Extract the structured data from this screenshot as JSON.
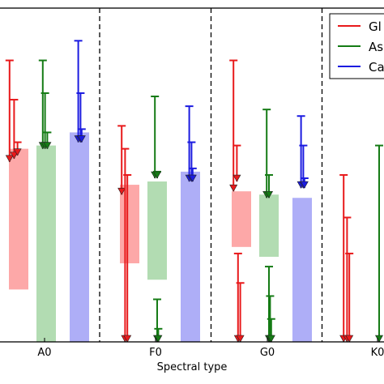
{
  "chart_data": {
    "type": "bar",
    "xlabel": "Spectral type",
    "ylabel": "",
    "title": "",
    "ylim": [
      0,
      10
    ],
    "categories": [
      "A0",
      "F0",
      "G0",
      "K0"
    ],
    "separators_between_categories": true,
    "grid": false,
    "legend": {
      "placement": "top-right",
      "entries": [
        {
          "label": "Gl",
          "color": "#e8191b"
        },
        {
          "label": "As",
          "color": "#157b15"
        },
        {
          "label": "Ca",
          "color": "#1b1be0"
        }
      ]
    },
    "series": [
      {
        "name": "Gl",
        "color": "#e8191b",
        "fill": "#fda8a8",
        "bars": [
          {
            "category": "A0",
            "low": 1.6,
            "high": 5.9
          },
          {
            "category": "F0",
            "low": 2.4,
            "high": 4.8
          },
          {
            "category": "G0",
            "low": 2.9,
            "high": 4.6
          },
          {
            "category": "K0",
            "low": null,
            "high": null
          }
        ],
        "upper_limits": [
          {
            "category": "A0",
            "offset": -0.8,
            "top": 8.6,
            "bottom": 5.5
          },
          {
            "category": "A0",
            "offset": -0.4,
            "top": 7.4,
            "bottom": 5.6
          },
          {
            "category": "A0",
            "offset": -0.1,
            "top": 6.1,
            "bottom": 5.7
          },
          {
            "category": "F0",
            "offset": -0.7,
            "top": 6.6,
            "bottom": 4.5
          },
          {
            "category": "F0",
            "offset": -0.4,
            "top": 5.9,
            "bottom": 0.0
          },
          {
            "category": "F0",
            "offset": -0.2,
            "top": 5.1,
            "bottom": 0.0
          },
          {
            "category": "G0",
            "offset": -0.7,
            "top": 8.6,
            "bottom": 4.6
          },
          {
            "category": "G0",
            "offset": -0.4,
            "top": 6.0,
            "bottom": 4.9
          },
          {
            "category": "G0",
            "offset": -0.3,
            "top": 2.7,
            "bottom": 0.0
          },
          {
            "category": "G0",
            "offset": -0.1,
            "top": 1.8,
            "bottom": 0.0
          },
          {
            "category": "K0",
            "offset": -0.7,
            "top": 5.1,
            "bottom": 0.0
          },
          {
            "category": "K0",
            "offset": -0.4,
            "top": 3.8,
            "bottom": 0.0
          },
          {
            "category": "K0",
            "offset": -0.2,
            "top": 2.7,
            "bottom": 0.0
          }
        ]
      },
      {
        "name": "As",
        "color": "#157b15",
        "fill": "#b2dcb2",
        "bars": [
          {
            "category": "A0",
            "low": 0.0,
            "high": 6.0
          },
          {
            "category": "F0",
            "low": 1.9,
            "high": 4.9
          },
          {
            "category": "G0",
            "low": 2.6,
            "high": 4.5
          },
          {
            "category": "K0",
            "low": null,
            "high": null
          }
        ],
        "upper_limits": [
          {
            "category": "A0",
            "offset": -0.3,
            "top": 8.6,
            "bottom": 5.9
          },
          {
            "category": "A0",
            "offset": -0.1,
            "top": 7.6,
            "bottom": 5.9
          },
          {
            "category": "A0",
            "offset": 0.1,
            "top": 6.4,
            "bottom": 5.9
          },
          {
            "category": "F0",
            "offset": -0.2,
            "top": 7.5,
            "bottom": 5.0
          },
          {
            "category": "F0",
            "offset": 0.0,
            "top": 5.2,
            "bottom": 5.0
          },
          {
            "category": "F0",
            "offset": 0.0,
            "top": 1.3,
            "bottom": 0.0
          },
          {
            "category": "F0",
            "offset": 0.1,
            "top": 0.4,
            "bottom": 0.0
          },
          {
            "category": "G0",
            "offset": -0.2,
            "top": 7.1,
            "bottom": 4.4
          },
          {
            "category": "G0",
            "offset": 0.0,
            "top": 5.1,
            "bottom": 4.4
          },
          {
            "category": "G0",
            "offset": 0.0,
            "top": 2.3,
            "bottom": 0.0
          },
          {
            "category": "G0",
            "offset": 0.1,
            "top": 1.4,
            "bottom": 0.0
          },
          {
            "category": "G0",
            "offset": 0.2,
            "top": 0.7,
            "bottom": 0.0
          },
          {
            "category": "K0",
            "offset": 0.0,
            "top": 6.0,
            "bottom": 0.0
          }
        ]
      },
      {
        "name": "Ca",
        "color": "#1b1be0",
        "fill": "#aeaef7",
        "bars": [
          {
            "category": "A0",
            "low": 0.0,
            "high": 6.4
          },
          {
            "category": "F0",
            "low": 0.0,
            "high": 5.2
          },
          {
            "category": "G0",
            "low": 0.0,
            "high": 4.4
          },
          {
            "category": "K0",
            "low": null,
            "high": null
          }
        ],
        "upper_limits": [
          {
            "category": "A0",
            "offset": -0.1,
            "top": 9.2,
            "bottom": 6.1
          },
          {
            "category": "A0",
            "offset": 0.1,
            "top": 7.6,
            "bottom": 6.1
          },
          {
            "category": "A0",
            "offset": 0.2,
            "top": 6.5,
            "bottom": 6.1
          },
          {
            "category": "F0",
            "offset": -0.1,
            "top": 7.2,
            "bottom": 4.9
          },
          {
            "category": "F0",
            "offset": 0.1,
            "top": 6.1,
            "bottom": 4.9
          },
          {
            "category": "F0",
            "offset": 0.2,
            "top": 5.3,
            "bottom": 4.9
          },
          {
            "category": "G0",
            "offset": -0.1,
            "top": 6.9,
            "bottom": 4.7
          },
          {
            "category": "G0",
            "offset": 0.1,
            "top": 6.0,
            "bottom": 4.7
          },
          {
            "category": "G0",
            "offset": 0.2,
            "top": 5.0,
            "bottom": 4.7
          }
        ]
      }
    ]
  }
}
